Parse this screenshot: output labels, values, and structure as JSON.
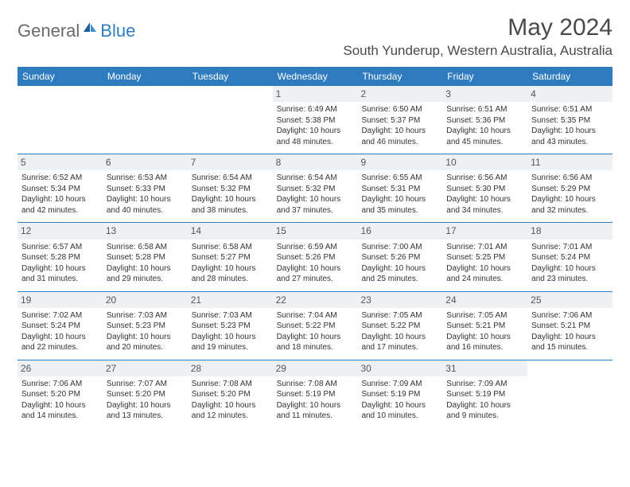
{
  "logo": {
    "text1": "General",
    "text2": "Blue"
  },
  "title": "May 2024",
  "location": "South Yunderup, Western Australia, Australia",
  "colors": {
    "header_bg": "#2f7bbf",
    "header_text": "#ffffff",
    "daynum_bg": "#eef1f4",
    "border": "#2f7bbf",
    "text": "#333333",
    "title_text": "#4a4a4a",
    "logo_gray": "#6a6a6a",
    "logo_blue": "#2f7bbf"
  },
  "dayNames": [
    "Sunday",
    "Monday",
    "Tuesday",
    "Wednesday",
    "Thursday",
    "Friday",
    "Saturday"
  ],
  "weeks": [
    [
      {
        "blank": true
      },
      {
        "blank": true
      },
      {
        "blank": true
      },
      {
        "num": "1",
        "sunrise": "6:49 AM",
        "sunset": "5:38 PM",
        "dlh": "10",
        "dlm": "48"
      },
      {
        "num": "2",
        "sunrise": "6:50 AM",
        "sunset": "5:37 PM",
        "dlh": "10",
        "dlm": "46"
      },
      {
        "num": "3",
        "sunrise": "6:51 AM",
        "sunset": "5:36 PM",
        "dlh": "10",
        "dlm": "45"
      },
      {
        "num": "4",
        "sunrise": "6:51 AM",
        "sunset": "5:35 PM",
        "dlh": "10",
        "dlm": "43"
      }
    ],
    [
      {
        "num": "5",
        "sunrise": "6:52 AM",
        "sunset": "5:34 PM",
        "dlh": "10",
        "dlm": "42"
      },
      {
        "num": "6",
        "sunrise": "6:53 AM",
        "sunset": "5:33 PM",
        "dlh": "10",
        "dlm": "40"
      },
      {
        "num": "7",
        "sunrise": "6:54 AM",
        "sunset": "5:32 PM",
        "dlh": "10",
        "dlm": "38"
      },
      {
        "num": "8",
        "sunrise": "6:54 AM",
        "sunset": "5:32 PM",
        "dlh": "10",
        "dlm": "37"
      },
      {
        "num": "9",
        "sunrise": "6:55 AM",
        "sunset": "5:31 PM",
        "dlh": "10",
        "dlm": "35"
      },
      {
        "num": "10",
        "sunrise": "6:56 AM",
        "sunset": "5:30 PM",
        "dlh": "10",
        "dlm": "34"
      },
      {
        "num": "11",
        "sunrise": "6:56 AM",
        "sunset": "5:29 PM",
        "dlh": "10",
        "dlm": "32"
      }
    ],
    [
      {
        "num": "12",
        "sunrise": "6:57 AM",
        "sunset": "5:28 PM",
        "dlh": "10",
        "dlm": "31"
      },
      {
        "num": "13",
        "sunrise": "6:58 AM",
        "sunset": "5:28 PM",
        "dlh": "10",
        "dlm": "29"
      },
      {
        "num": "14",
        "sunrise": "6:58 AM",
        "sunset": "5:27 PM",
        "dlh": "10",
        "dlm": "28"
      },
      {
        "num": "15",
        "sunrise": "6:59 AM",
        "sunset": "5:26 PM",
        "dlh": "10",
        "dlm": "27"
      },
      {
        "num": "16",
        "sunrise": "7:00 AM",
        "sunset": "5:26 PM",
        "dlh": "10",
        "dlm": "25"
      },
      {
        "num": "17",
        "sunrise": "7:01 AM",
        "sunset": "5:25 PM",
        "dlh": "10",
        "dlm": "24"
      },
      {
        "num": "18",
        "sunrise": "7:01 AM",
        "sunset": "5:24 PM",
        "dlh": "10",
        "dlm": "23"
      }
    ],
    [
      {
        "num": "19",
        "sunrise": "7:02 AM",
        "sunset": "5:24 PM",
        "dlh": "10",
        "dlm": "22"
      },
      {
        "num": "20",
        "sunrise": "7:03 AM",
        "sunset": "5:23 PM",
        "dlh": "10",
        "dlm": "20"
      },
      {
        "num": "21",
        "sunrise": "7:03 AM",
        "sunset": "5:23 PM",
        "dlh": "10",
        "dlm": "19"
      },
      {
        "num": "22",
        "sunrise": "7:04 AM",
        "sunset": "5:22 PM",
        "dlh": "10",
        "dlm": "18"
      },
      {
        "num": "23",
        "sunrise": "7:05 AM",
        "sunset": "5:22 PM",
        "dlh": "10",
        "dlm": "17"
      },
      {
        "num": "24",
        "sunrise": "7:05 AM",
        "sunset": "5:21 PM",
        "dlh": "10",
        "dlm": "16"
      },
      {
        "num": "25",
        "sunrise": "7:06 AM",
        "sunset": "5:21 PM",
        "dlh": "10",
        "dlm": "15"
      }
    ],
    [
      {
        "num": "26",
        "sunrise": "7:06 AM",
        "sunset": "5:20 PM",
        "dlh": "10",
        "dlm": "14"
      },
      {
        "num": "27",
        "sunrise": "7:07 AM",
        "sunset": "5:20 PM",
        "dlh": "10",
        "dlm": "13"
      },
      {
        "num": "28",
        "sunrise": "7:08 AM",
        "sunset": "5:20 PM",
        "dlh": "10",
        "dlm": "12"
      },
      {
        "num": "29",
        "sunrise": "7:08 AM",
        "sunset": "5:19 PM",
        "dlh": "10",
        "dlm": "11"
      },
      {
        "num": "30",
        "sunrise": "7:09 AM",
        "sunset": "5:19 PM",
        "dlh": "10",
        "dlm": "10"
      },
      {
        "num": "31",
        "sunrise": "7:09 AM",
        "sunset": "5:19 PM",
        "dlh": "10",
        "dlm": "9"
      },
      {
        "blank": true
      }
    ]
  ],
  "labels": {
    "sunrise": "Sunrise: ",
    "sunset": "Sunset: ",
    "daylight1": "Daylight: ",
    "daylight2": " hours and ",
    "daylight3": " minutes."
  }
}
